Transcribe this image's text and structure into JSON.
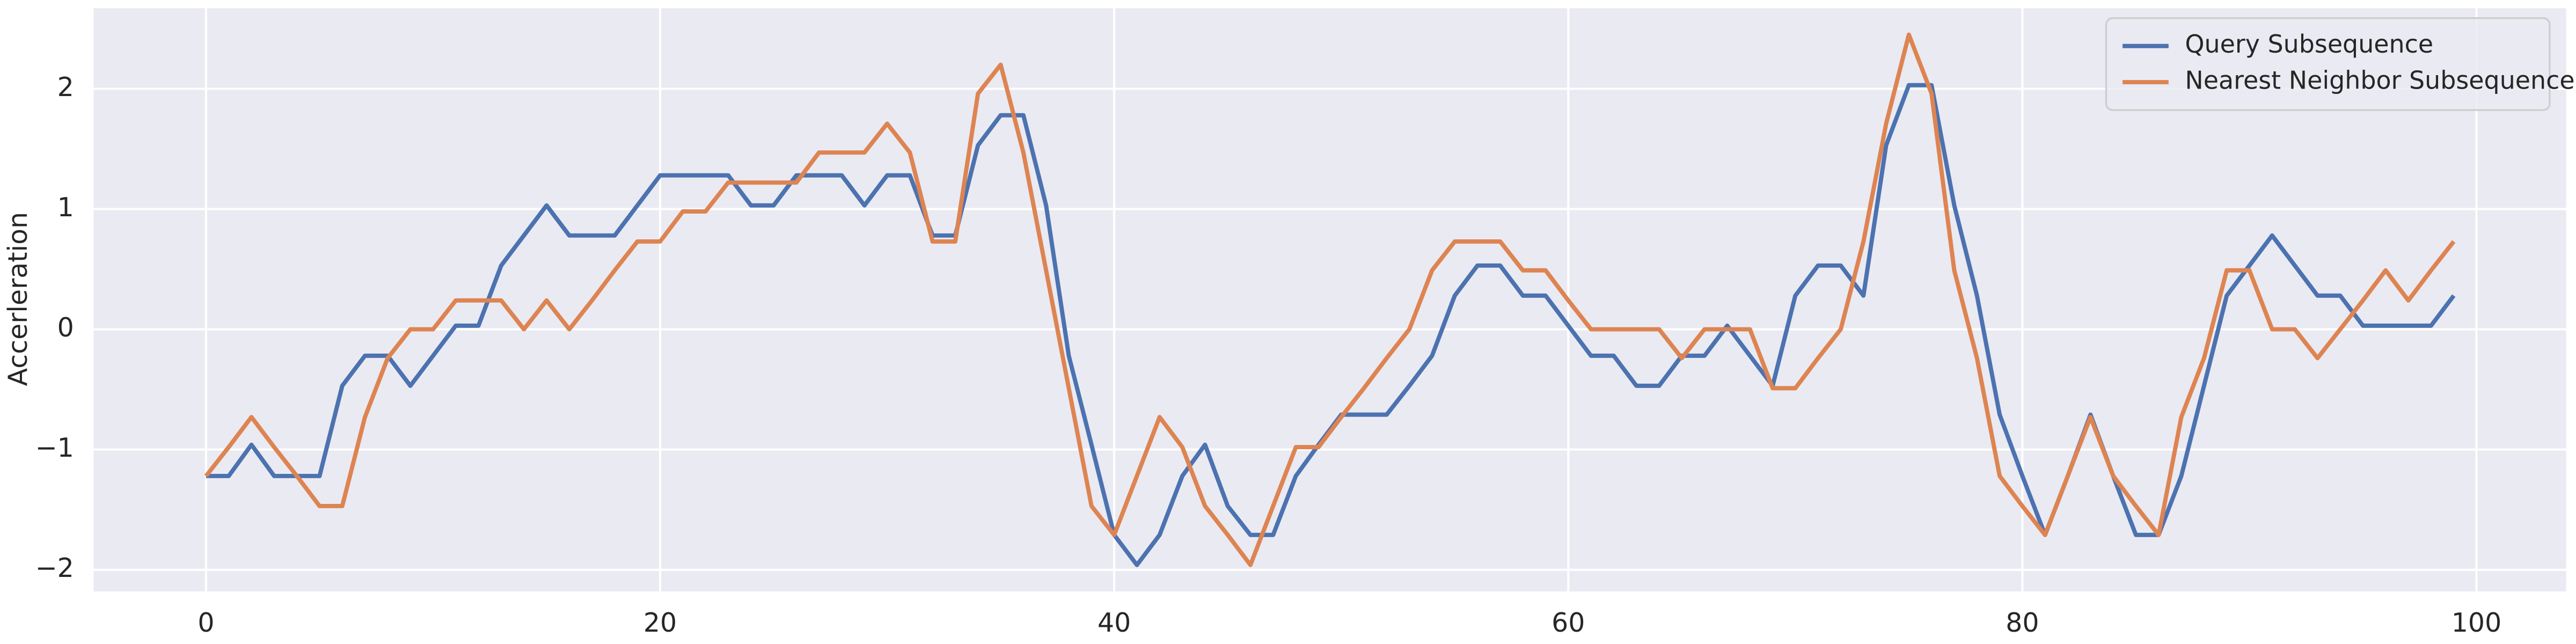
{
  "chart_data": {
    "type": "line",
    "ylabel": "Accerleration",
    "x": [
      0,
      1,
      2,
      3,
      4,
      5,
      6,
      7,
      8,
      9,
      10,
      11,
      12,
      13,
      14,
      15,
      16,
      17,
      18,
      19,
      20,
      21,
      22,
      23,
      24,
      25,
      26,
      27,
      28,
      29,
      30,
      31,
      32,
      33,
      34,
      35,
      36,
      37,
      38,
      39,
      40,
      41,
      42,
      43,
      44,
      45,
      46,
      47,
      48,
      49,
      50,
      51,
      52,
      53,
      54,
      55,
      56,
      57,
      58,
      59,
      60,
      61,
      62,
      63,
      64,
      65,
      66,
      67,
      68,
      69,
      70,
      71,
      72,
      73,
      74,
      75,
      76,
      77,
      78,
      79,
      80,
      81,
      82,
      83,
      84,
      85,
      86,
      87,
      88,
      89,
      90,
      91,
      92,
      93,
      94,
      95,
      96,
      97,
      98,
      99
    ],
    "series": [
      {
        "name": "Query Subsequence",
        "color": "#4c72b0",
        "values": [
          -1.22,
          -1.22,
          -0.96,
          -1.22,
          -1.22,
          -1.22,
          -0.47,
          -0.22,
          -0.22,
          -0.47,
          -0.22,
          0.03,
          0.03,
          0.53,
          0.78,
          1.03,
          0.78,
          0.78,
          0.78,
          1.03,
          1.28,
          1.28,
          1.28,
          1.28,
          1.03,
          1.03,
          1.28,
          1.28,
          1.28,
          1.03,
          1.28,
          1.28,
          0.78,
          0.78,
          1.53,
          1.78,
          1.78,
          1.03,
          -0.22,
          -0.96,
          -1.71,
          -1.96,
          -1.71,
          -1.22,
          -0.96,
          -1.47,
          -1.71,
          -1.71,
          -1.22,
          -0.96,
          -0.71,
          -0.71,
          -0.71,
          -0.47,
          -0.22,
          0.28,
          0.53,
          0.53,
          0.28,
          0.28,
          0.03,
          -0.22,
          -0.22,
          -0.47,
          -0.47,
          -0.22,
          -0.22,
          0.03,
          -0.22,
          -0.47,
          0.28,
          0.53,
          0.53,
          0.28,
          1.53,
          2.03,
          2.03,
          1.03,
          0.28,
          -0.71,
          -1.22,
          -1.71,
          -1.22,
          -0.71,
          -1.22,
          -1.71,
          -1.71,
          -1.22,
          -0.47,
          0.28,
          0.53,
          0.78,
          0.53,
          0.28,
          0.28,
          0.03,
          0.03,
          0.03,
          0.03,
          0.28
        ]
      },
      {
        "name": "Nearest Neighbor Subsequence",
        "color": "#dd8452",
        "values": [
          -1.22,
          -0.98,
          -0.73,
          -0.98,
          -1.22,
          -1.47,
          -1.47,
          -0.73,
          -0.24,
          0,
          0,
          0.24,
          0.24,
          0.24,
          0,
          0.24,
          0,
          0.24,
          0.49,
          0.73,
          0.73,
          0.98,
          0.98,
          1.22,
          1.22,
          1.22,
          1.22,
          1.47,
          1.47,
          1.47,
          1.71,
          1.47,
          0.73,
          0.73,
          1.96,
          2.2,
          1.47,
          0.49,
          -0.49,
          -1.47,
          -1.71,
          -1.22,
          -0.73,
          -0.98,
          -1.47,
          -1.71,
          -1.96,
          -1.47,
          -0.98,
          -0.98,
          -0.73,
          -0.49,
          -0.24,
          0,
          0.49,
          0.73,
          0.73,
          0.73,
          0.49,
          0.49,
          0.24,
          0,
          0,
          0,
          0,
          -0.24,
          0,
          0,
          0,
          -0.49,
          -0.49,
          -0.24,
          0,
          0.73,
          1.71,
          2.45,
          1.96,
          0.49,
          -0.24,
          -1.22,
          -1.47,
          -1.71,
          -1.22,
          -0.73,
          -1.22,
          -1.47,
          -1.71,
          -0.73,
          -0.24,
          0.49,
          0.49,
          0,
          0,
          -0.24,
          0,
          0.24,
          0.49,
          0.24,
          0.49,
          0.73
        ]
      }
    ],
    "xlim": [
      -4.95,
      103.95
    ],
    "ylim": [
      -2.18,
      2.67
    ],
    "xticks": [
      0,
      20,
      40,
      60,
      80,
      100
    ],
    "yticks": [
      {
        "value": -2,
        "label": "−2"
      },
      {
        "value": -1,
        "label": "−1"
      },
      0,
      1,
      2
    ],
    "grid": true,
    "legend": "upper right"
  }
}
